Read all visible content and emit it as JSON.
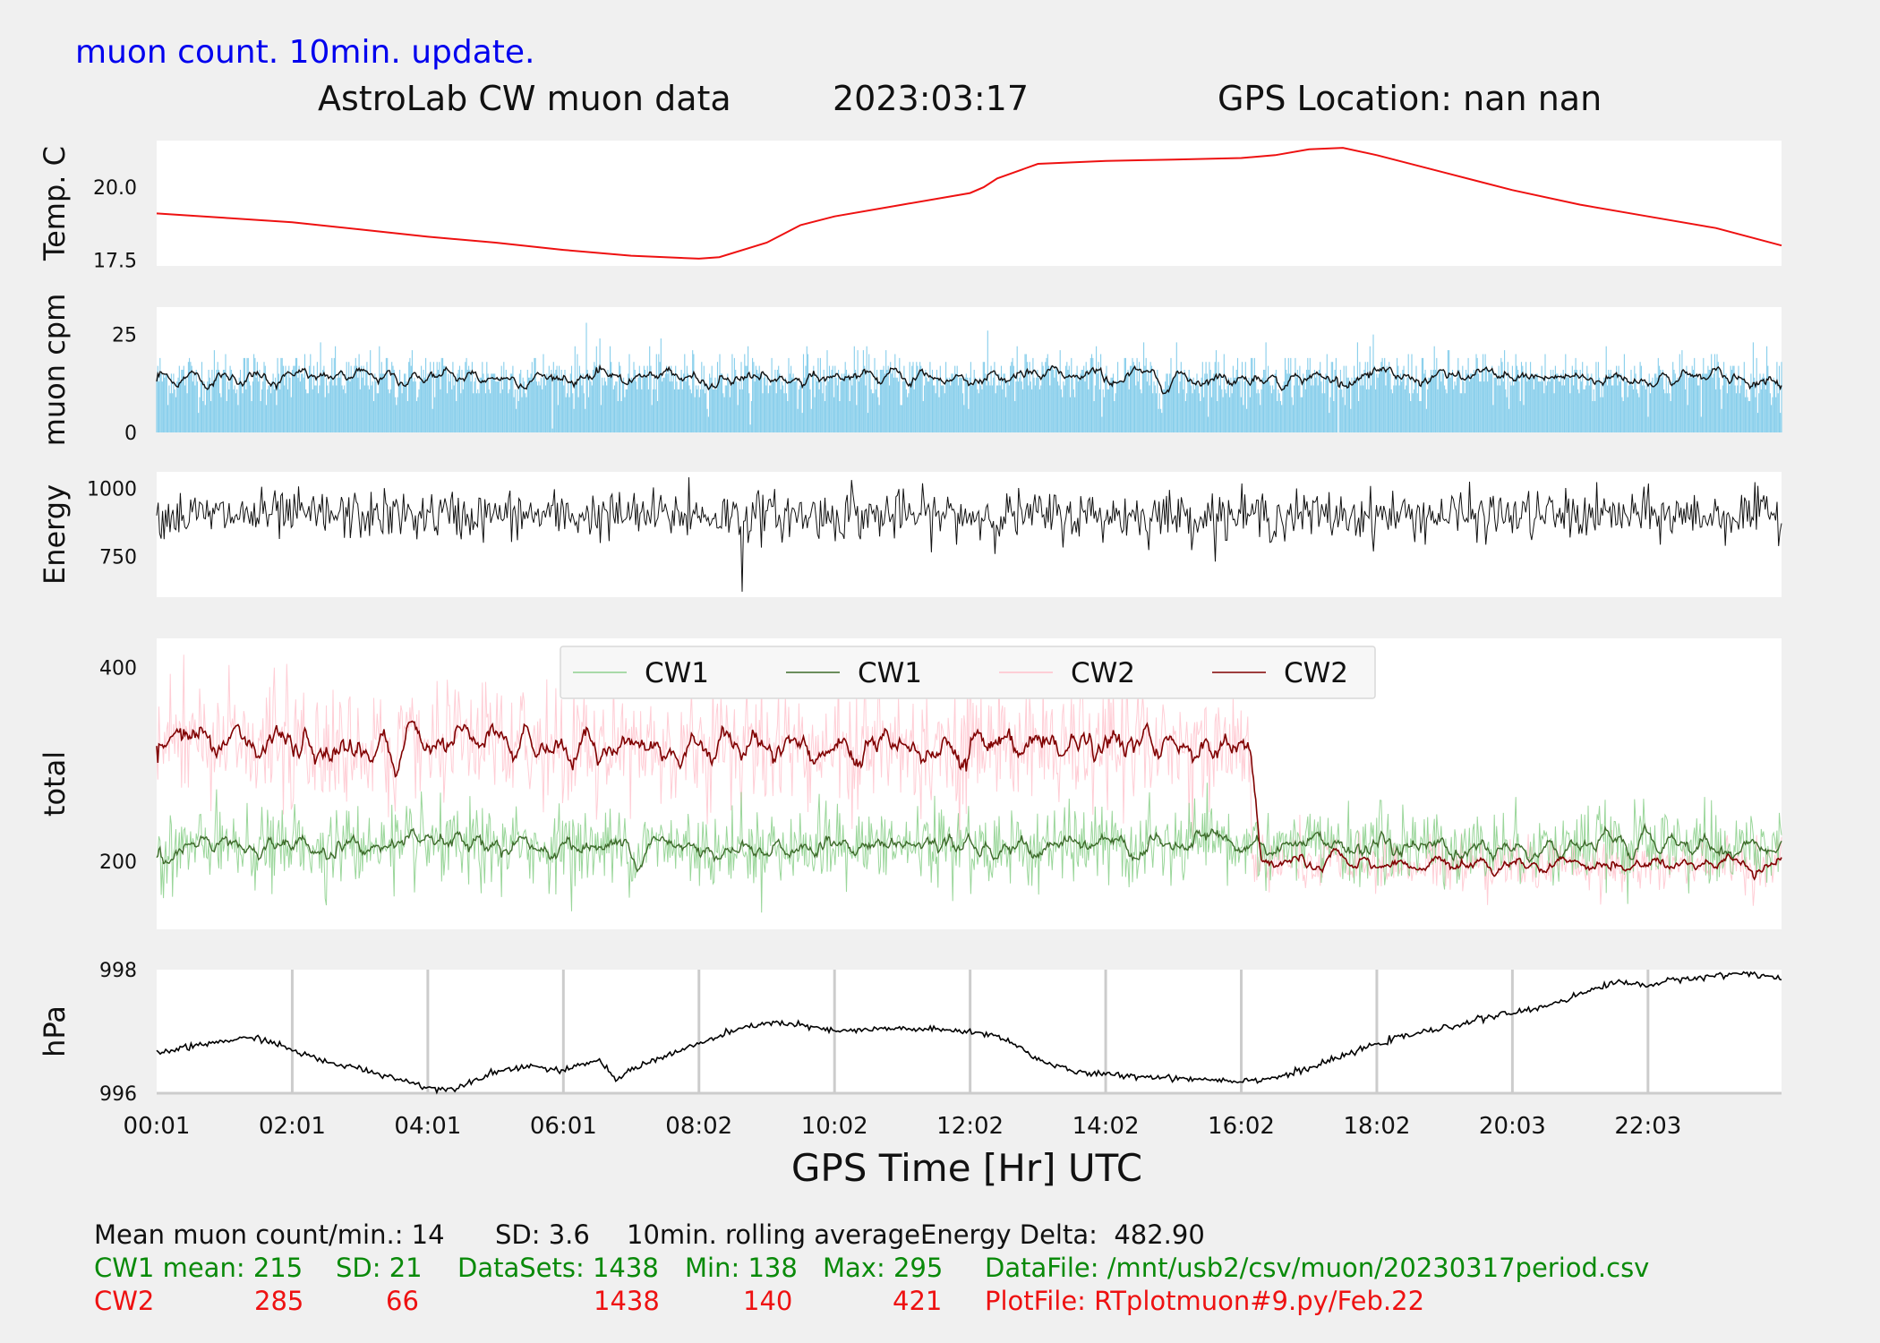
{
  "header": {
    "note": "muon count.  10min. update.",
    "title": "AstroLab CW muon data",
    "date": "2023:03:17",
    "gps_location": "GPS Location: nan   nan"
  },
  "colors": {
    "temperature": "#ee1111",
    "muon_bars": "#87ceeb",
    "rolling": "#111111",
    "cw1_raw": "#8fd18f",
    "cw1_avg": "#3d6b2a",
    "cw2_raw": "#ffc0cb",
    "cw2_avg": "#800000",
    "pressure": "#000000"
  },
  "chart_data": [
    {
      "id": "temperature",
      "type": "line",
      "ylabel": "Temp. C",
      "ylim": [
        17.3,
        21.6
      ],
      "yticks": [
        "20.0",
        "17.5"
      ],
      "ytick_values": [
        20.0,
        17.5
      ],
      "x_hours": [
        0,
        1,
        2,
        3,
        4,
        5,
        6,
        7,
        8,
        8.3,
        9,
        9.5,
        10,
        11,
        12,
        12.2,
        12.4,
        13,
        14,
        15,
        16,
        16.5,
        17,
        17.5,
        18,
        19,
        20,
        21,
        22,
        23,
        23.97
      ],
      "y": [
        19.1,
        18.95,
        18.8,
        18.55,
        18.3,
        18.1,
        17.85,
        17.65,
        17.55,
        17.6,
        18.1,
        18.7,
        19.0,
        19.4,
        19.8,
        20.0,
        20.3,
        20.8,
        20.9,
        20.95,
        21.0,
        21.1,
        21.3,
        21.35,
        21.1,
        20.5,
        19.9,
        19.4,
        19.0,
        18.6,
        18.0
      ],
      "series": [
        {
          "name": "temperature"
        }
      ]
    },
    {
      "id": "muon",
      "type": "bar",
      "ylabel": "muon cpm",
      "ylim": [
        0,
        32
      ],
      "yticks": [
        "25",
        "0"
      ],
      "ytick_values": [
        25,
        0
      ],
      "mean": 14,
      "sd": 3.6,
      "series": [
        {
          "name": "muon counts"
        },
        {
          "name": "10min rolling average"
        }
      ]
    },
    {
      "id": "energy",
      "type": "line",
      "ylabel": "Energy",
      "ylim": [
        600,
        1060
      ],
      "yticks": [
        "1000",
        "750"
      ],
      "ytick_values": [
        1000,
        750
      ],
      "mean": 900,
      "series": [
        {
          "name": "energy"
        }
      ]
    },
    {
      "id": "total",
      "type": "line",
      "ylabel": "total",
      "ylim": [
        130,
        430
      ],
      "yticks": [
        "400",
        "200"
      ],
      "ytick_values": [
        400,
        200
      ],
      "legend_labels": [
        "CW1",
        "CW1",
        "CW2",
        "CW2"
      ],
      "legend_placement": "top-center",
      "cw1_mean": 215,
      "cw2_mean_before": 320,
      "cw2_step_hour": 16.15,
      "cw2_mean_after": 198,
      "series": [
        {
          "name": "CW1"
        },
        {
          "name": "CW1"
        },
        {
          "name": "CW2"
        },
        {
          "name": "CW2"
        }
      ]
    },
    {
      "id": "pressure",
      "type": "line",
      "ylabel": "hPa",
      "ylim": [
        996,
        998
      ],
      "yticks": [
        "998",
        "996"
      ],
      "ytick_values": [
        998,
        996
      ],
      "grid": "x",
      "x_hours": [
        0,
        1,
        1.5,
        2,
        2.5,
        3,
        3.5,
        4,
        4.3,
        5,
        5.5,
        6,
        6.5,
        6.8,
        7,
        7.5,
        8,
        8.5,
        9,
        9.5,
        10,
        11,
        12,
        12.5,
        13,
        13.5,
        14,
        15,
        16,
        16.5,
        17,
        17.5,
        18,
        18.5,
        19,
        19.5,
        20,
        20.3,
        21,
        21.5,
        22,
        22.5,
        23,
        23.5,
        23.97
      ],
      "y": [
        996.65,
        996.85,
        996.9,
        996.7,
        996.5,
        996.4,
        996.25,
        996.1,
        996.05,
        996.35,
        996.45,
        996.35,
        996.55,
        996.2,
        996.4,
        996.6,
        996.8,
        997.0,
        997.15,
        997.1,
        997.0,
        997.05,
        997.0,
        996.9,
        996.55,
        996.35,
        996.3,
        996.25,
        996.2,
        996.25,
        996.4,
        996.6,
        996.8,
        996.95,
        997.05,
        997.2,
        997.3,
        997.35,
        997.6,
        997.8,
        997.75,
        997.85,
        997.9,
        997.95,
        997.85
      ],
      "series": [
        {
          "name": "pressure"
        }
      ]
    }
  ],
  "xaxis": {
    "label": "GPS Time  [Hr] UTC",
    "ticks": [
      "00:01",
      "02:01",
      "04:01",
      "06:01",
      "08:02",
      "10:02",
      "12:02",
      "14:02",
      "16:02",
      "18:02",
      "20:03",
      "22:03"
    ],
    "tick_hours": [
      0,
      2,
      4,
      6,
      8,
      10,
      12,
      14,
      16,
      18,
      20,
      22
    ],
    "range_hours": [
      0,
      23.97
    ]
  },
  "stats": {
    "line1": {
      "mean_muon": "Mean muon count/min.: 14",
      "sd": "SD: 3.6",
      "rolling": "10min. rolling average.",
      "energy_delta": "Energy Delta:  482.90"
    },
    "cw1": {
      "mean": "CW1 mean: 215",
      "sd": "SD: 21",
      "datasets": "DataSets: 1438",
      "min": "Min: 138",
      "max": "Max: 295",
      "datafile": "DataFile: /mnt/usb2/csv/muon/20230317period.csv"
    },
    "cw2": {
      "label": "CW2",
      "mean": "285",
      "sd": "66",
      "datasets": "1438",
      "min": "140",
      "max": "421",
      "plotfile": "PlotFile: RTplotmuon#9.py/Feb.22"
    }
  }
}
